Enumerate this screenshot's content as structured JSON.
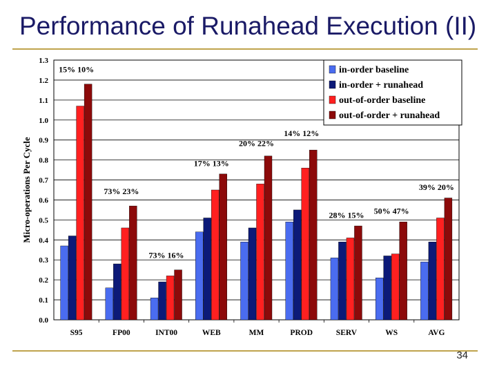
{
  "slide": {
    "title": "Performance of Runahead Execution (II)",
    "page_number": "34"
  },
  "colors": {
    "in_order_baseline": "#4a6cf0",
    "in_order_runahead": "#0c1a78",
    "ooo_baseline": "#ff2020",
    "ooo_runahead": "#8c0a0a",
    "annotation_highlight": "#c00000",
    "rule": "#bfa34c"
  },
  "chart_data": {
    "type": "bar",
    "title": "",
    "xlabel": "",
    "ylabel": "Micro-operations Per Cycle",
    "ylim": [
      0.0,
      1.3
    ],
    "yticks": [
      "0.0",
      "0.1",
      "0.2",
      "0.3",
      "0.4",
      "0.5",
      "0.6",
      "0.7",
      "0.8",
      "0.9",
      "1.0",
      "1.1",
      "1.2",
      "1.3"
    ],
    "grid": true,
    "legend_position": "top-right",
    "categories": [
      "S95",
      "FP00",
      "INT00",
      "WEB",
      "MM",
      "PROD",
      "SERV",
      "WS",
      "AVG"
    ],
    "series": [
      {
        "name": "in-order baseline",
        "color_key": "in_order_baseline",
        "values": [
          0.37,
          0.16,
          0.11,
          0.44,
          0.39,
          0.49,
          0.31,
          0.21,
          0.29
        ]
      },
      {
        "name": "in-order + runahead",
        "color_key": "in_order_runahead",
        "values": [
          0.42,
          0.28,
          0.19,
          0.51,
          0.46,
          0.55,
          0.39,
          0.32,
          0.39
        ]
      },
      {
        "name": "out-of-order baseline",
        "color_key": "ooo_baseline",
        "values": [
          1.07,
          0.46,
          0.22,
          0.65,
          0.68,
          0.76,
          0.41,
          0.33,
          0.51
        ]
      },
      {
        "name": "out-of-order + runahead",
        "color_key": "ooo_runahead",
        "values": [
          1.18,
          0.57,
          0.25,
          0.73,
          0.82,
          0.85,
          0.47,
          0.49,
          0.61
        ]
      }
    ],
    "annotations": [
      {
        "category": "S95",
        "text": "15% 10%",
        "y": 1.24,
        "highlight": false
      },
      {
        "category": "FP00",
        "text": "73% 23%",
        "y": 0.63,
        "highlight": false
      },
      {
        "category": "INT00",
        "text": "73% 16%",
        "y": 0.31,
        "highlight": false
      },
      {
        "category": "WEB",
        "text": "17% 13%",
        "y": 0.77,
        "highlight": false
      },
      {
        "category": "MM",
        "text": "20% 22%",
        "y": 0.87,
        "highlight": false
      },
      {
        "category": "PROD",
        "text": "14% 12%",
        "y": 0.92,
        "highlight": false
      },
      {
        "category": "SERV",
        "text": "28% 15%",
        "y": 0.51,
        "highlight": false
      },
      {
        "category": "WS",
        "text": "50% 47%",
        "y": 0.53,
        "highlight": false
      },
      {
        "category": "AVG",
        "text": "39% 20%",
        "y": 0.65,
        "highlight": true
      }
    ]
  }
}
